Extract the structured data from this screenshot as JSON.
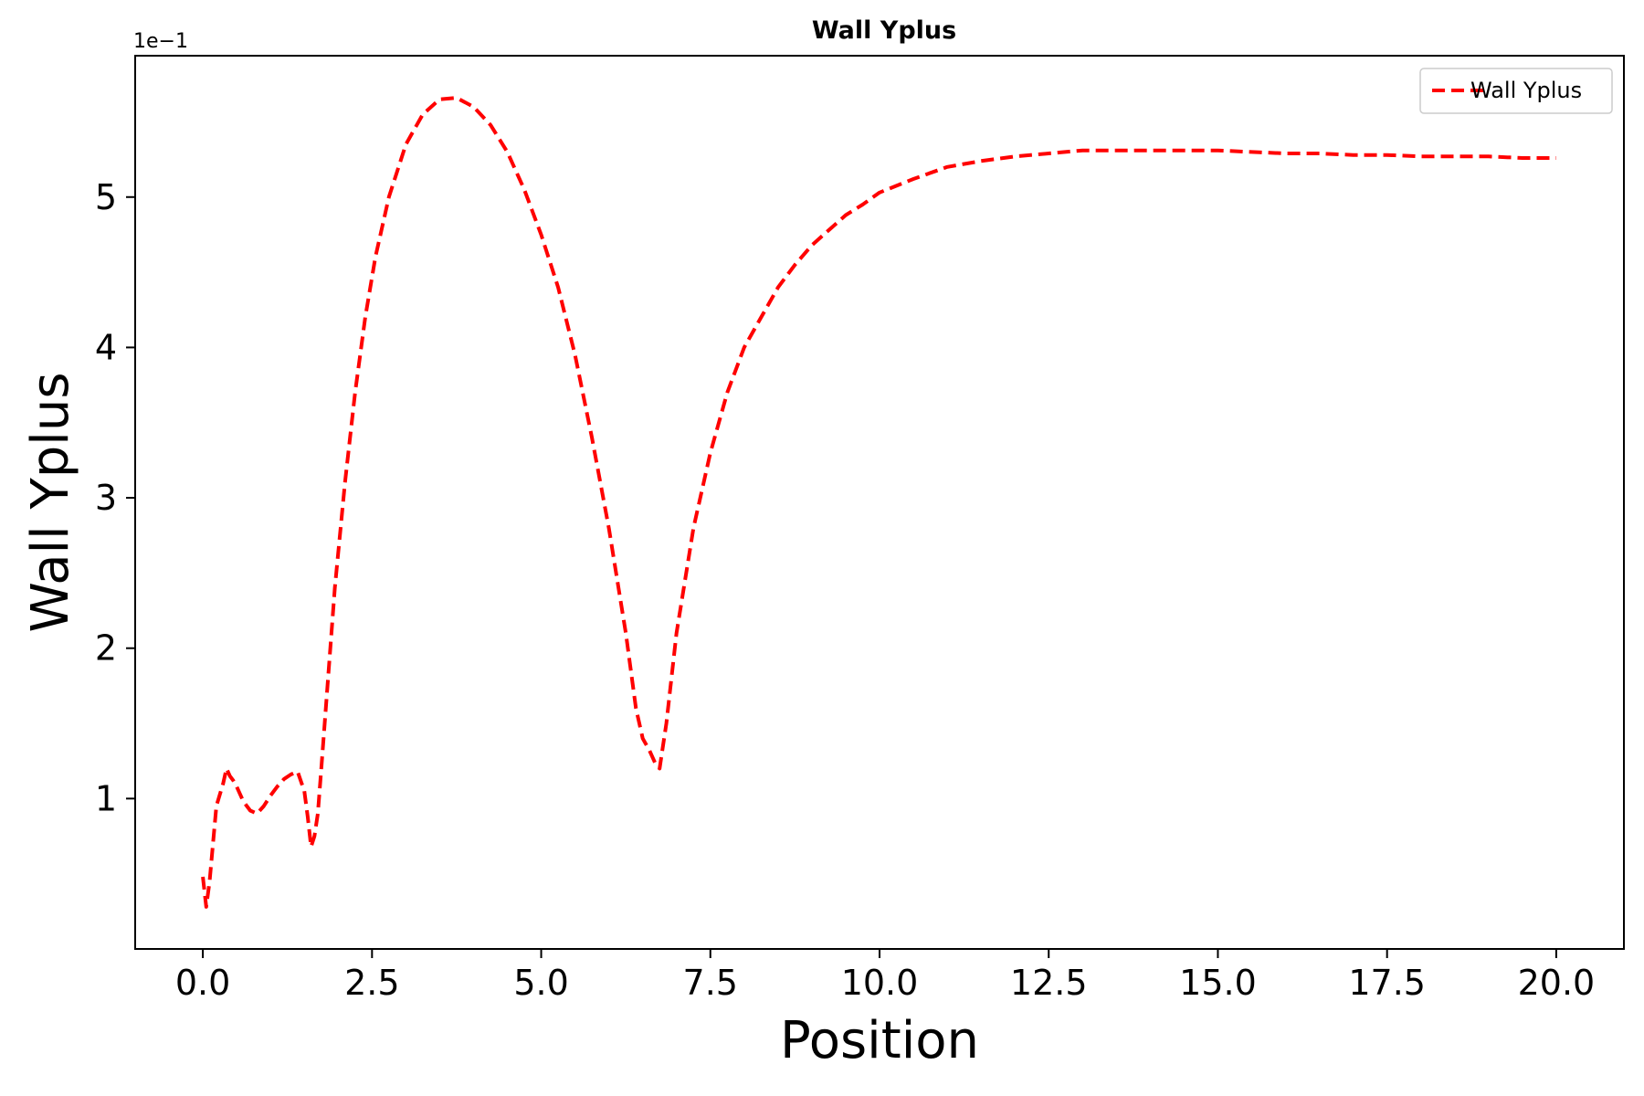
{
  "chart_data": {
    "type": "line",
    "title": "Wall Yplus",
    "xlabel": "Position",
    "ylabel": "Wall Yplus",
    "y_offset_label": "1e−1",
    "xlim": [
      -1.0,
      21.0
    ],
    "ylim": [
      0.0,
      0.594
    ],
    "xticks": [
      0.0,
      2.5,
      5.0,
      7.5,
      10.0,
      12.5,
      15.0,
      17.5,
      20.0
    ],
    "xtick_labels": [
      "0.0",
      "2.5",
      "5.0",
      "7.5",
      "10.0",
      "12.5",
      "15.0",
      "17.5",
      "20.0"
    ],
    "yticks": [
      0.1,
      0.2,
      0.3,
      0.4,
      0.5
    ],
    "ytick_labels": [
      "1",
      "2",
      "3",
      "4",
      "5"
    ],
    "grid": false,
    "legend_position": "top-right",
    "series": [
      {
        "name": "Wall Yplus",
        "color": "#ff0000",
        "line_style": "dashed",
        "x": [
          0.0,
          0.05,
          0.1,
          0.15,
          0.2,
          0.3,
          0.35,
          0.4,
          0.45,
          0.5,
          0.6,
          0.7,
          0.8,
          0.9,
          1.0,
          1.1,
          1.2,
          1.3,
          1.4,
          1.5,
          1.55,
          1.6,
          1.65,
          1.7,
          1.75,
          1.85,
          1.95,
          2.1,
          2.25,
          2.4,
          2.55,
          2.75,
          3.0,
          3.25,
          3.5,
          3.75,
          4.0,
          4.25,
          4.5,
          4.75,
          5.0,
          5.25,
          5.5,
          5.75,
          6.0,
          6.25,
          6.4,
          6.5,
          6.6,
          6.7,
          6.75,
          6.85,
          7.0,
          7.25,
          7.5,
          7.75,
          8.0,
          8.25,
          8.5,
          8.75,
          9.0,
          9.25,
          9.5,
          9.75,
          10.0,
          10.5,
          11.0,
          11.5,
          12.0,
          12.5,
          13.0,
          13.5,
          14.0,
          14.5,
          15.0,
          15.5,
          16.0,
          16.5,
          17.0,
          17.5,
          18.0,
          18.5,
          19.0,
          19.5,
          20.0
        ],
        "y": [
          0.048,
          0.028,
          0.045,
          0.07,
          0.095,
          0.11,
          0.12,
          0.115,
          0.112,
          0.108,
          0.098,
          0.092,
          0.09,
          0.095,
          0.102,
          0.108,
          0.113,
          0.116,
          0.118,
          0.105,
          0.088,
          0.068,
          0.075,
          0.09,
          0.12,
          0.18,
          0.24,
          0.31,
          0.37,
          0.42,
          0.46,
          0.5,
          0.535,
          0.555,
          0.565,
          0.566,
          0.56,
          0.548,
          0.53,
          0.505,
          0.475,
          0.44,
          0.395,
          0.34,
          0.28,
          0.21,
          0.16,
          0.14,
          0.132,
          0.122,
          0.12,
          0.15,
          0.21,
          0.28,
          0.33,
          0.37,
          0.4,
          0.42,
          0.44,
          0.455,
          0.468,
          0.478,
          0.488,
          0.495,
          0.503,
          0.512,
          0.52,
          0.524,
          0.527,
          0.529,
          0.531,
          0.531,
          0.531,
          0.531,
          0.531,
          0.53,
          0.529,
          0.529,
          0.528,
          0.528,
          0.527,
          0.527,
          0.527,
          0.526,
          0.526
        ]
      }
    ]
  }
}
